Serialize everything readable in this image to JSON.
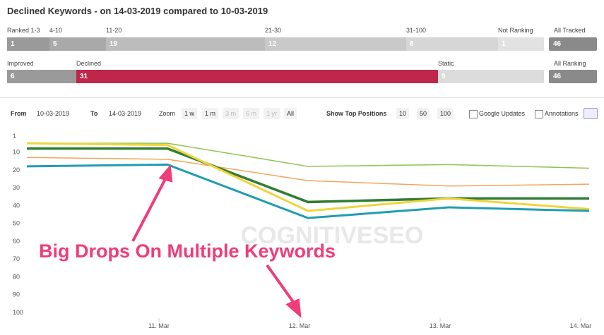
{
  "header": {
    "title": "Declined Keywords - on 14-03-2019 compared to 10-03-2019"
  },
  "ranking_bar": {
    "segments": [
      {
        "label": "Ranked 1-3",
        "count": 1
      },
      {
        "label": "4-10",
        "count": 5
      },
      {
        "label": "11-20",
        "count": 19
      },
      {
        "label": "21-30",
        "count": 12
      },
      {
        "label": "31-100",
        "count": 8
      },
      {
        "label": "Not Ranking",
        "count": 1
      }
    ],
    "total_label": "All Tracked",
    "total": 46
  },
  "change_bar": {
    "segments": [
      {
        "label": "Improved",
        "count": 6
      },
      {
        "label": "Declined",
        "count": 31
      },
      {
        "label": "Static",
        "count": 9
      }
    ],
    "total_label": "All Ranking",
    "total": 46
  },
  "controls": {
    "from_label": "From",
    "from": "10-03-2019",
    "to_label": "To",
    "to": "14-03-2019",
    "zoom_label": "Zoom",
    "zoom": [
      "1 w",
      "1 m",
      "3 m",
      "6 m",
      "1 yr",
      "All"
    ],
    "top_label": "Show Top Positions",
    "top": [
      "10",
      "50",
      "100"
    ],
    "checkboxes": [
      "Google Updates",
      "Annotations"
    ]
  },
  "chart_data": {
    "type": "line",
    "categories": [
      null,
      "11. Mar",
      "12. Mar",
      "13. Mar",
      "14. Mar"
    ],
    "series": [
      {
        "color": "#8dc450",
        "values": [
          5,
          5,
          18,
          17,
          19
        ]
      },
      {
        "color": "#f2a65a",
        "values": [
          13,
          14,
          26,
          29,
          28
        ]
      },
      {
        "color": "#2f7d32",
        "values": [
          8,
          8,
          38,
          36,
          36
        ]
      },
      {
        "color": "#f0d43c",
        "values": [
          5,
          6,
          43,
          36,
          42
        ]
      },
      {
        "color": "#1f9db2",
        "values": [
          18,
          17,
          47,
          41,
          43
        ]
      }
    ],
    "ylim": [
      1,
      100
    ],
    "y_reversed": true,
    "yticks": [
      1,
      10,
      20,
      30,
      40,
      50,
      60,
      70,
      80,
      90,
      100
    ],
    "grid": false,
    "annotation": "Big Drops On Multiple Keywords",
    "watermark": "COGNITIVESEO"
  }
}
